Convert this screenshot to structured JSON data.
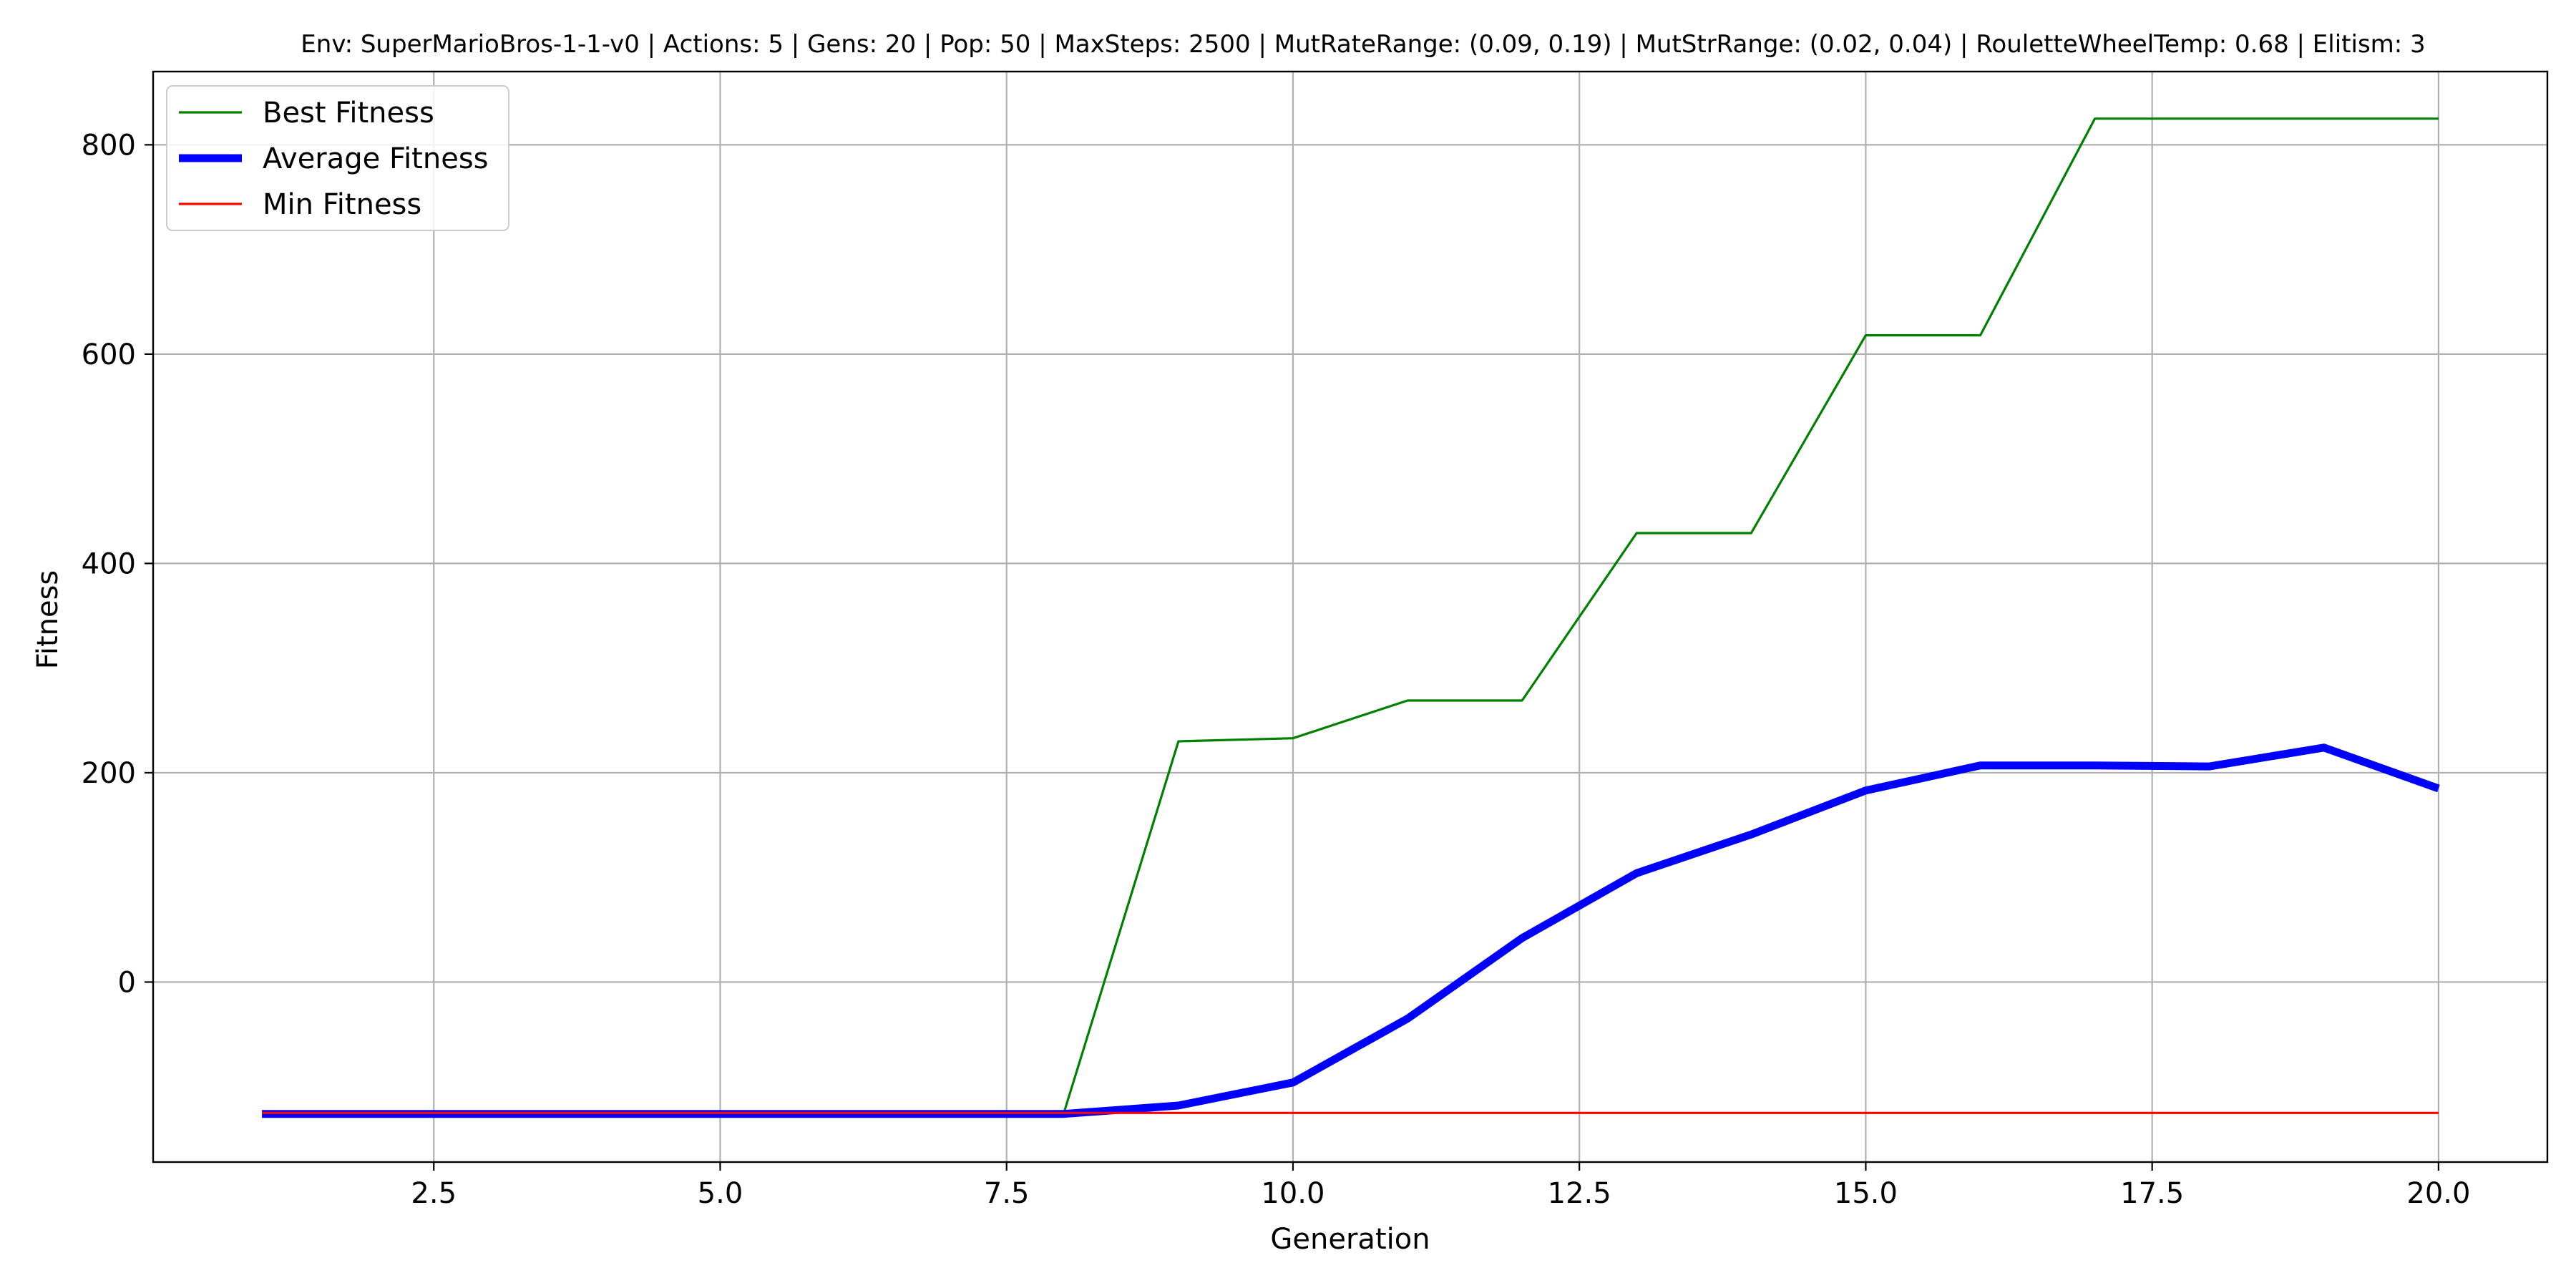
{
  "chart_data": {
    "type": "line",
    "title": "Env: SuperMarioBros-1-1-v0 | Actions: 5 | Gens: 20 | Pop: 50 | MaxSteps: 2500 | MutRateRange: (0.09, 0.19) | MutStrRange: (0.02, 0.04) | RouletteWheelTemp: 0.68 | Elitism: 3",
    "xlabel": "Generation",
    "ylabel": "Fitness",
    "xlim": [
      0.05,
      20.95
    ],
    "ylim": [
      -172,
      870
    ],
    "xticks": [
      2.5,
      5.0,
      7.5,
      10.0,
      12.5,
      15.0,
      17.5,
      20.0
    ],
    "xtick_labels": [
      "2.5",
      "5.0",
      "7.5",
      "10.0",
      "12.5",
      "15.0",
      "17.5",
      "20.0"
    ],
    "yticks": [
      0,
      200,
      400,
      600,
      800
    ],
    "ytick_labels": [
      "0",
      "200",
      "400",
      "600",
      "800"
    ],
    "grid": true,
    "legend_position": "top-left",
    "x": [
      1,
      2,
      3,
      4,
      5,
      6,
      7,
      8,
      9,
      10,
      11,
      12,
      13,
      14,
      15,
      16,
      17,
      18,
      19,
      20
    ],
    "series": [
      {
        "name": "Best Fitness",
        "color": "#008000",
        "values": [
          -125,
          -125,
          -125,
          -125,
          -125,
          -125,
          -125,
          -125,
          230,
          233,
          269,
          269,
          429,
          429,
          618,
          618,
          825,
          825,
          825,
          825
        ]
      },
      {
        "name": "Average Fitness",
        "color": "#0000ff",
        "values": [
          -126,
          -126,
          -126,
          -126,
          -126,
          -126,
          -126,
          -126,
          -118,
          -96,
          -35,
          42,
          104,
          141,
          183,
          207,
          207,
          206,
          224,
          185
        ]
      },
      {
        "name": "Min Fitness",
        "color": "#ff0000",
        "values": [
          -125,
          -125,
          -125,
          -125,
          -125,
          -125,
          -125,
          -125,
          -125,
          -125,
          -125,
          -125,
          -125,
          -125,
          -125,
          -125,
          -125,
          -125,
          -125,
          -125
        ]
      }
    ]
  }
}
